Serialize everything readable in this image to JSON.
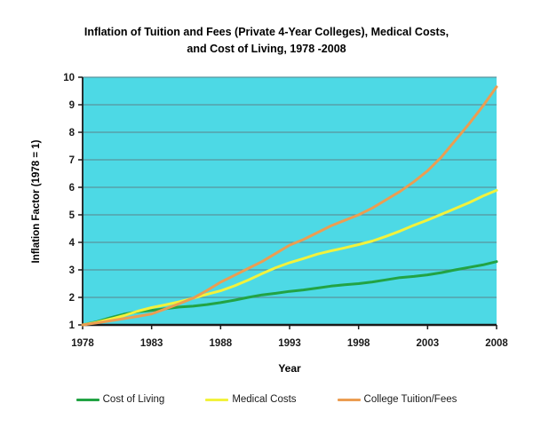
{
  "title": {
    "line1": "Inflation of Tuition and Fees (Private 4-Year Colleges), Medical Costs,",
    "line2": "and Cost of Living, 1978 -2008"
  },
  "chart_data": {
    "type": "line",
    "title": "Inflation of Tuition and Fees (Private 4-Year Colleges), Medical Costs, and Cost of Living, 1978 -2008",
    "xlabel": "Year",
    "ylabel": "Inflation Factor (1978 = 1)",
    "xlim": [
      1978,
      2008
    ],
    "ylim": [
      1,
      10
    ],
    "xticks": [
      1978,
      1983,
      1988,
      1993,
      1998,
      2003,
      2008
    ],
    "yticks": [
      1,
      2,
      3,
      4,
      5,
      6,
      7,
      8,
      9,
      10
    ],
    "grid": true,
    "legend_position": "bottom",
    "plot_bg_color": "#4dd9e5",
    "gridline_color": "#5a949e",
    "axis_color": "#1a1a1a",
    "x": [
      1978,
      1979,
      1980,
      1981,
      1982,
      1983,
      1984,
      1985,
      1986,
      1987,
      1988,
      1989,
      1990,
      1991,
      1992,
      1993,
      1994,
      1995,
      1996,
      1997,
      1998,
      1999,
      2000,
      2001,
      2002,
      2003,
      2004,
      2005,
      2006,
      2007,
      2008
    ],
    "series": [
      {
        "name": "Cost of Living",
        "color": "#22a344",
        "values": [
          1.0,
          1.11,
          1.26,
          1.39,
          1.48,
          1.53,
          1.59,
          1.65,
          1.68,
          1.74,
          1.81,
          1.9,
          2.0,
          2.09,
          2.15,
          2.22,
          2.27,
          2.34,
          2.41,
          2.46,
          2.5,
          2.56,
          2.64,
          2.72,
          2.76,
          2.82,
          2.9,
          3.0,
          3.09,
          3.18,
          3.3
        ]
      },
      {
        "name": "Medical Costs",
        "color": "#f2f23c",
        "values": [
          1.0,
          1.09,
          1.21,
          1.34,
          1.5,
          1.63,
          1.73,
          1.84,
          1.97,
          2.11,
          2.24,
          2.42,
          2.63,
          2.86,
          3.08,
          3.26,
          3.41,
          3.57,
          3.69,
          3.8,
          3.92,
          4.05,
          4.22,
          4.41,
          4.62,
          4.81,
          5.02,
          5.23,
          5.44,
          5.68,
          5.89
        ]
      },
      {
        "name": "College Tuition/Fees",
        "color": "#eb9d52",
        "values": [
          1.0,
          1.07,
          1.15,
          1.23,
          1.31,
          1.4,
          1.58,
          1.77,
          1.97,
          2.25,
          2.55,
          2.8,
          3.05,
          3.3,
          3.6,
          3.9,
          4.1,
          4.35,
          4.6,
          4.8,
          5.0,
          5.25,
          5.55,
          5.85,
          6.2,
          6.6,
          7.1,
          7.7,
          8.3,
          8.95,
          9.65
        ]
      }
    ]
  }
}
